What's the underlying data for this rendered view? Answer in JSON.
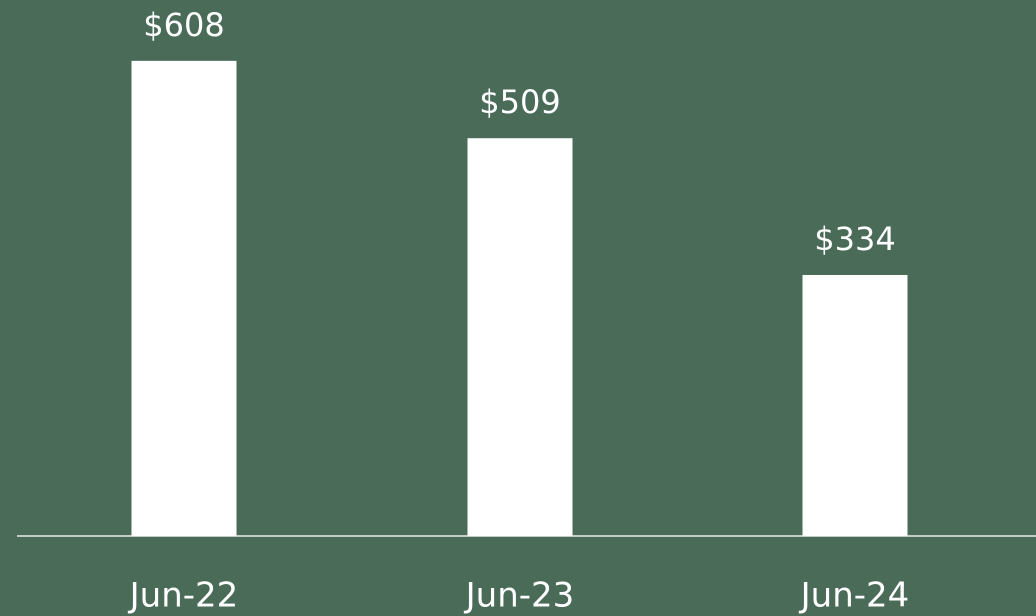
{
  "chart_data": {
    "type": "bar",
    "categories": [
      "Jun-22",
      "Jun-23",
      "Jun-24"
    ],
    "values": [
      608,
      509,
      334
    ],
    "value_labels": [
      "$608",
      "$509",
      "$334"
    ],
    "color": "#ffffff"
  }
}
